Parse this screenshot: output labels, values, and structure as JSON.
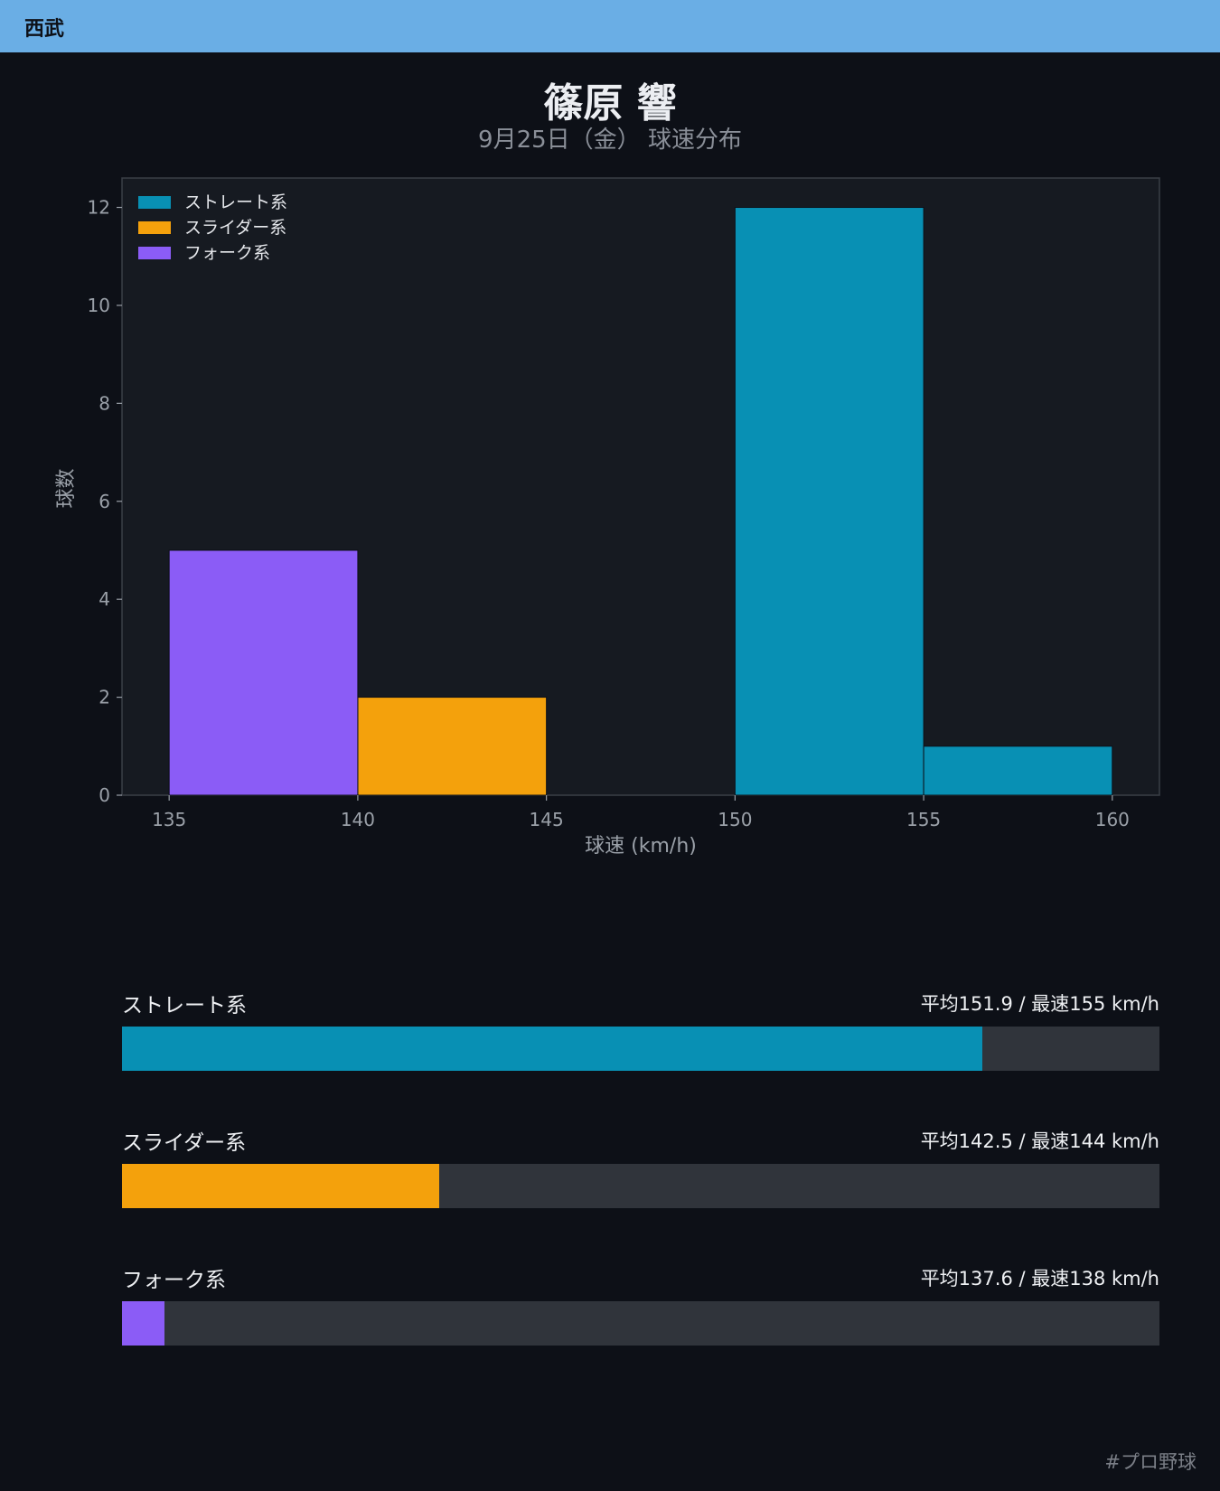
{
  "header": {
    "team": "西武"
  },
  "title": "篠原 響",
  "subtitle": "9月25日（金） 球速分布",
  "colors": {
    "straight": "#0890b4",
    "slider": "#f4a10c",
    "fork": "#8b5cf6",
    "plot_bg": "#161a21",
    "page_bg": "#0d1017"
  },
  "chart_data": {
    "type": "bar",
    "xlabel": "球速 (km/h)",
    "ylabel": "球数",
    "xlim": [
      133.75,
      161.25
    ],
    "ylim": [
      0,
      12.6
    ],
    "x_ticks": [
      135,
      140,
      145,
      150,
      155,
      160
    ],
    "y_ticks": [
      0,
      2,
      4,
      6,
      8,
      10,
      12
    ],
    "legend_position": "top-left",
    "series": [
      {
        "name": "ストレート系",
        "color": "#0890b4",
        "bins": [
          {
            "from": 150,
            "to": 155,
            "count": 12
          },
          {
            "from": 155,
            "to": 160,
            "count": 1
          }
        ]
      },
      {
        "name": "スライダー系",
        "color": "#f4a10c",
        "bins": [
          {
            "from": 140,
            "to": 145,
            "count": 2
          }
        ]
      },
      {
        "name": "フォーク系",
        "color": "#8b5cf6",
        "bins": [
          {
            "from": 135,
            "to": 140,
            "count": 5
          }
        ]
      }
    ]
  },
  "stats": [
    {
      "label": "ストレート系",
      "value_text": "平均151.9 / 最速155 km/h",
      "fill_fraction": 0.829,
      "color": "#0890b4"
    },
    {
      "label": "スライダー系",
      "value_text": "平均142.5 / 最速144 km/h",
      "fill_fraction": 0.306,
      "color": "#f4a10c"
    },
    {
      "label": "フォーク系",
      "value_text": "平均137.6 / 最速138 km/h",
      "fill_fraction": 0.041,
      "color": "#8b5cf6"
    }
  ],
  "footer": {
    "hashtag": "#プロ野球"
  }
}
